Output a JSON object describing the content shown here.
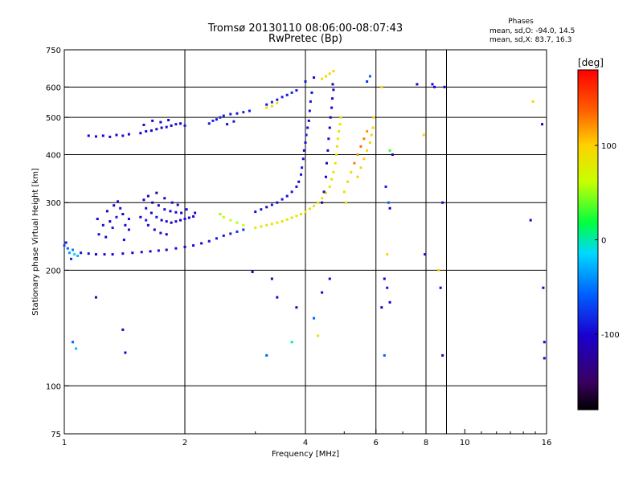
{
  "header": {
    "title_line1": "Tromsø 20130110 08:06:00-08:07:43",
    "title_line2": "RwPretec (Bp)"
  },
  "stats": {
    "heading": "Phases",
    "line_o": "mean, sd,O: -94.0, 14.5",
    "line_x": "mean, sd,X:  83.7, 16.3"
  },
  "colorbar": {
    "unit_label": "[deg]",
    "ticks": [
      {
        "value": 100,
        "label": "100"
      },
      {
        "value": 0,
        "label": "0"
      },
      {
        "value": -100,
        "label": "-100"
      }
    ],
    "range": [
      -180,
      180
    ],
    "colors": [
      "#000000",
      "#3a0060",
      "#1a00d0",
      "#0060ff",
      "#00d8ff",
      "#00ff40",
      "#c8ff00",
      "#ffd000",
      "#ff6000",
      "#ff0000"
    ]
  },
  "chart_data": {
    "type": "scatter",
    "title": "Tromsø 20130110 08:06:00-08:07:43",
    "subtitle": "RwPretec (Bp)",
    "xlabel": "Frequency [MHz]",
    "ylabel": "Stationary phase Virtual Height [km]",
    "xscale": "log",
    "yscale": "log",
    "xlim": [
      1,
      16
    ],
    "ylim": [
      75,
      750
    ],
    "grid": true,
    "xticks": [
      {
        "value": 1,
        "label": "1"
      },
      {
        "value": 2,
        "label": "2"
      },
      {
        "value": 4,
        "label": "4"
      },
      {
        "value": 6,
        "label": "6"
      },
      {
        "value": 8,
        "label": "8"
      },
      {
        "value": 10,
        "label": "10"
      },
      {
        "value": 16,
        "label": "16"
      }
    ],
    "xgrid": [
      2,
      4,
      6,
      8,
      9
    ],
    "yticks": [
      {
        "value": 75,
        "label": "75"
      },
      {
        "value": 100,
        "label": "100"
      },
      {
        "value": 200,
        "label": "200"
      },
      {
        "value": 300,
        "label": "300"
      },
      {
        "value": 400,
        "label": "400"
      },
      {
        "value": 500,
        "label": "500"
      },
      {
        "value": 600,
        "label": "600"
      },
      {
        "value": 750,
        "label": "750"
      }
    ],
    "ygrid": [
      100,
      200,
      300,
      400,
      500,
      600
    ],
    "colorbar_label": "[deg]",
    "points": [
      [
        1.0,
        232,
        -70
      ],
      [
        1.02,
        228,
        -60
      ],
      [
        1.03,
        222,
        -40
      ],
      [
        1.05,
        226,
        -50
      ],
      [
        1.08,
        218,
        -30
      ],
      [
        1.04,
        214,
        -80
      ],
      [
        1.01,
        236,
        -90
      ],
      [
        1.06,
        220,
        -20
      ],
      [
        1.1,
        222,
        -95
      ],
      [
        1.15,
        221,
        -95
      ],
      [
        1.2,
        220,
        -100
      ],
      [
        1.26,
        220,
        -95
      ],
      [
        1.32,
        220,
        -100
      ],
      [
        1.4,
        221,
        -95
      ],
      [
        1.48,
        222,
        -100
      ],
      [
        1.56,
        223,
        -95
      ],
      [
        1.64,
        224,
        -100
      ],
      [
        1.72,
        225,
        -95
      ],
      [
        1.8,
        226,
        -100
      ],
      [
        1.9,
        228,
        -95
      ],
      [
        2.0,
        230,
        -100
      ],
      [
        2.1,
        232,
        -95
      ],
      [
        2.2,
        235,
        -100
      ],
      [
        2.3,
        238,
        -95
      ],
      [
        2.4,
        242,
        -90
      ],
      [
        2.5,
        246,
        -90
      ],
      [
        2.6,
        249,
        -85
      ],
      [
        2.7,
        252,
        -80
      ],
      [
        2.8,
        255,
        -75
      ],
      [
        1.25,
        262,
        -95
      ],
      [
        1.3,
        268,
        -100
      ],
      [
        1.35,
        275,
        -90
      ],
      [
        1.4,
        280,
        -110
      ],
      [
        1.45,
        272,
        -95
      ],
      [
        1.28,
        285,
        -100
      ],
      [
        1.38,
        290,
        -95
      ],
      [
        1.32,
        258,
        -90
      ],
      [
        1.22,
        248,
        -95
      ],
      [
        1.27,
        244,
        -100
      ],
      [
        1.33,
        295,
        -110
      ],
      [
        1.36,
        302,
        -95
      ],
      [
        1.42,
        262,
        -100
      ],
      [
        1.45,
        255,
        -90
      ],
      [
        1.21,
        272,
        -100
      ],
      [
        1.41,
        240,
        -95
      ],
      [
        1.6,
        290,
        -95
      ],
      [
        1.65,
        282,
        -100
      ],
      [
        1.7,
        275,
        -90
      ],
      [
        1.75,
        270,
        -110
      ],
      [
        1.8,
        268,
        -95
      ],
      [
        1.85,
        266,
        -100
      ],
      [
        1.9,
        268,
        -95
      ],
      [
        1.95,
        270,
        -100
      ],
      [
        2.0,
        272,
        -95
      ],
      [
        2.05,
        274,
        -100
      ],
      [
        2.1,
        276,
        -95
      ],
      [
        1.58,
        305,
        -100
      ],
      [
        1.62,
        312,
        -110
      ],
      [
        1.66,
        300,
        -120
      ],
      [
        1.72,
        295,
        -100
      ],
      [
        1.78,
        288,
        -95
      ],
      [
        1.84,
        285,
        -100
      ],
      [
        1.9,
        283,
        -95
      ],
      [
        1.96,
        282,
        -100
      ],
      [
        1.62,
        262,
        -95
      ],
      [
        1.68,
        255,
        -100
      ],
      [
        1.74,
        250,
        -95
      ],
      [
        1.8,
        248,
        -100
      ],
      [
        1.7,
        318,
        -120
      ],
      [
        1.78,
        308,
        -110
      ],
      [
        1.86,
        300,
        -95
      ],
      [
        1.55,
        275,
        -100
      ],
      [
        1.6,
        270,
        -90
      ],
      [
        1.92,
        296,
        -100
      ],
      [
        2.02,
        288,
        -95
      ],
      [
        2.12,
        282,
        -100
      ],
      [
        1.15,
        448,
        -100
      ],
      [
        1.2,
        446,
        -95
      ],
      [
        1.25,
        448,
        -100
      ],
      [
        1.3,
        445,
        -95
      ],
      [
        1.35,
        450,
        -100
      ],
      [
        1.4,
        448,
        -95
      ],
      [
        1.45,
        452,
        -100
      ],
      [
        1.55,
        455,
        -100
      ],
      [
        1.6,
        460,
        -95
      ],
      [
        1.65,
        462,
        -100
      ],
      [
        1.7,
        466,
        -95
      ],
      [
        1.75,
        470,
        -100
      ],
      [
        1.8,
        472,
        -95
      ],
      [
        1.85,
        476,
        -100
      ],
      [
        1.9,
        480,
        -95
      ],
      [
        1.95,
        482,
        -100
      ],
      [
        2.0,
        476,
        -90
      ],
      [
        1.58,
        478,
        -95
      ],
      [
        1.66,
        490,
        -100
      ],
      [
        1.74,
        486,
        -95
      ],
      [
        1.82,
        492,
        -100
      ],
      [
        2.3,
        482,
        -90
      ],
      [
        2.35,
        490,
        -85
      ],
      [
        2.4,
        494,
        -90
      ],
      [
        2.45,
        500,
        -85
      ],
      [
        2.5,
        505,
        -90
      ],
      [
        2.6,
        510,
        -85
      ],
      [
        2.7,
        512,
        -90
      ],
      [
        2.8,
        516,
        -85
      ],
      [
        2.9,
        520,
        -90
      ],
      [
        2.55,
        480,
        -95
      ],
      [
        2.65,
        488,
        -90
      ],
      [
        3.2,
        540,
        -90
      ],
      [
        3.3,
        548,
        -85
      ],
      [
        3.4,
        556,
        -90
      ],
      [
        3.5,
        565,
        -85
      ],
      [
        3.6,
        572,
        -90
      ],
      [
        3.7,
        580,
        -85
      ],
      [
        3.8,
        588,
        -90
      ],
      [
        3.2,
        530,
        90
      ],
      [
        3.3,
        535,
        95
      ],
      [
        3.4,
        545,
        90
      ],
      [
        4.0,
        620,
        -90
      ],
      [
        4.2,
        635,
        -100
      ],
      [
        3.0,
        258,
        80
      ],
      [
        3.1,
        260,
        85
      ],
      [
        3.2,
        262,
        80
      ],
      [
        3.3,
        264,
        85
      ],
      [
        3.4,
        266,
        80
      ],
      [
        3.5,
        268,
        85
      ],
      [
        3.6,
        271,
        80
      ],
      [
        3.7,
        274,
        85
      ],
      [
        3.8,
        277,
        80
      ],
      [
        3.9,
        280,
        85
      ],
      [
        4.0,
        284,
        80
      ],
      [
        4.1,
        289,
        85
      ],
      [
        4.2,
        294,
        80
      ],
      [
        4.3,
        300,
        85
      ],
      [
        4.4,
        308,
        80
      ],
      [
        4.5,
        318,
        85
      ],
      [
        4.6,
        330,
        80
      ],
      [
        4.65,
        345,
        85
      ],
      [
        4.7,
        360,
        80
      ],
      [
        4.75,
        380,
        85
      ],
      [
        4.78,
        400,
        80
      ],
      [
        4.8,
        420,
        85
      ],
      [
        4.82,
        440,
        80
      ],
      [
        4.85,
        460,
        85
      ],
      [
        4.88,
        480,
        80
      ],
      [
        4.9,
        500,
        85
      ],
      [
        2.6,
        270,
        60
      ],
      [
        2.7,
        266,
        55
      ],
      [
        2.8,
        262,
        65
      ],
      [
        2.5,
        275,
        70
      ],
      [
        2.45,
        280,
        50
      ],
      [
        3.0,
        284,
        -95
      ],
      [
        3.1,
        288,
        -90
      ],
      [
        3.2,
        292,
        -95
      ],
      [
        3.3,
        296,
        -90
      ],
      [
        3.4,
        300,
        -95
      ],
      [
        3.5,
        306,
        -90
      ],
      [
        3.6,
        312,
        -95
      ],
      [
        3.7,
        320,
        -90
      ],
      [
        3.8,
        330,
        -95
      ],
      [
        3.85,
        340,
        -100
      ],
      [
        3.9,
        355,
        -95
      ],
      [
        3.92,
        370,
        -90
      ],
      [
        3.95,
        390,
        -95
      ],
      [
        3.97,
        410,
        -100
      ],
      [
        4.0,
        430,
        -95
      ],
      [
        4.02,
        450,
        -90
      ],
      [
        4.05,
        470,
        -95
      ],
      [
        4.08,
        490,
        -100
      ],
      [
        4.1,
        520,
        -95
      ],
      [
        4.12,
        550,
        -90
      ],
      [
        4.15,
        580,
        -95
      ],
      [
        4.4,
        300,
        -120
      ],
      [
        4.45,
        320,
        -110
      ],
      [
        4.5,
        350,
        -100
      ],
      [
        4.52,
        380,
        -110
      ],
      [
        4.55,
        410,
        -100
      ],
      [
        4.57,
        440,
        -95
      ],
      [
        4.6,
        470,
        -100
      ],
      [
        4.62,
        500,
        -110
      ],
      [
        4.65,
        530,
        -100
      ],
      [
        4.67,
        560,
        -95
      ],
      [
        4.7,
        590,
        -100
      ],
      [
        4.68,
        610,
        -110
      ],
      [
        5.4,
        350,
        95
      ],
      [
        5.5,
        370,
        90
      ],
      [
        5.6,
        390,
        100
      ],
      [
        5.7,
        410,
        95
      ],
      [
        5.8,
        430,
        90
      ],
      [
        5.85,
        450,
        95
      ],
      [
        5.9,
        470,
        100
      ],
      [
        5.92,
        500,
        90
      ],
      [
        5.3,
        380,
        130
      ],
      [
        5.4,
        400,
        120
      ],
      [
        5.5,
        420,
        135
      ],
      [
        5.6,
        440,
        130
      ],
      [
        5.7,
        460,
        120
      ],
      [
        5.0,
        320,
        90
      ],
      [
        5.1,
        340,
        95
      ],
      [
        5.2,
        360,
        90
      ],
      [
        5.05,
        300,
        85
      ],
      [
        4.5,
        640,
        90
      ],
      [
        4.6,
        650,
        95
      ],
      [
        4.7,
        660,
        100
      ],
      [
        4.4,
        630,
        85
      ],
      [
        2.95,
        198,
        -100
      ],
      [
        3.3,
        190,
        -110
      ],
      [
        3.4,
        170,
        -100
      ],
      [
        3.8,
        160,
        -100
      ],
      [
        4.2,
        150,
        -60
      ],
      [
        4.4,
        175,
        -110
      ],
      [
        4.6,
        190,
        -100
      ],
      [
        4.3,
        135,
        90
      ],
      [
        3.7,
        130,
        0
      ],
      [
        3.2,
        120,
        -60
      ],
      [
        1.4,
        140,
        -100
      ],
      [
        1.42,
        122,
        -100
      ],
      [
        1.2,
        170,
        -100
      ],
      [
        1.05,
        130,
        -60
      ],
      [
        1.07,
        125,
        -30
      ],
      [
        6.3,
        190,
        -100
      ],
      [
        6.4,
        180,
        -90
      ],
      [
        6.5,
        165,
        -100
      ],
      [
        6.3,
        120,
        -60
      ],
      [
        6.45,
        300,
        -60
      ],
      [
        6.5,
        290,
        -100
      ],
      [
        6.35,
        330,
        -90
      ],
      [
        6.6,
        400,
        -110
      ],
      [
        6.4,
        220,
        90
      ],
      [
        6.2,
        600,
        90
      ],
      [
        6.5,
        410,
        30
      ],
      [
        6.2,
        160,
        -100
      ],
      [
        7.6,
        610,
        -100
      ],
      [
        7.9,
        450,
        100
      ],
      [
        7.95,
        220,
        -100
      ],
      [
        8.3,
        610,
        -100
      ],
      [
        8.4,
        600,
        -100
      ],
      [
        8.9,
        600,
        -100
      ],
      [
        8.8,
        300,
        -100
      ],
      [
        8.6,
        200,
        100
      ],
      [
        8.8,
        120,
        -100
      ],
      [
        8.7,
        180,
        -100
      ],
      [
        14.6,
        270,
        -100
      ],
      [
        14.8,
        550,
        100
      ],
      [
        15.6,
        480,
        -100
      ],
      [
        15.7,
        180,
        -100
      ],
      [
        15.8,
        130,
        -100
      ],
      [
        15.8,
        118,
        -100
      ],
      [
        5.8,
        640,
        -60
      ],
      [
        5.7,
        620,
        -80
      ]
    ]
  }
}
